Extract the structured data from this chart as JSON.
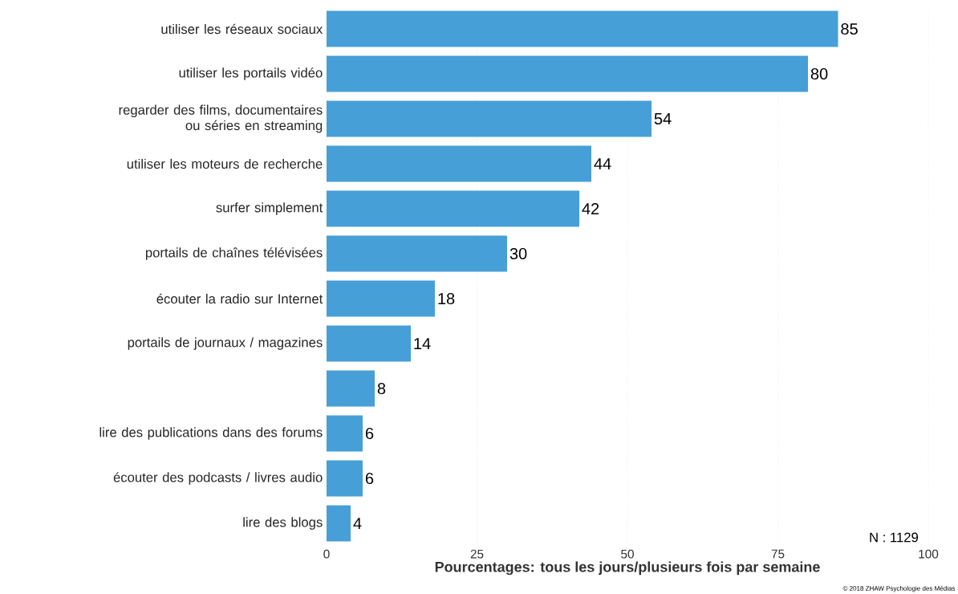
{
  "chart_data": {
    "type": "bar",
    "orientation": "horizontal",
    "categories": [
      "utiliser les réseaux sociaux",
      "utiliser les portails vidéo",
      "regarder des films, documentaires ou séries en streaming",
      "utiliser les moteurs de recherche",
      "surfer simplement",
      "portails de chaînes télévisées",
      "écouter la radio sur Internet",
      "portails de journaux / magazines",
      null,
      "lire des publications dans des forums",
      "écouter des podcasts / livres audio",
      "lire des blogs"
    ],
    "values": [
      85,
      80,
      54,
      44,
      42,
      30,
      18,
      14,
      8,
      6,
      6,
      4
    ],
    "color": "#479fd7",
    "data_labels": true,
    "xlim": [
      0,
      100
    ],
    "xticks": [
      0,
      25,
      50,
      75,
      100
    ],
    "grid": "x",
    "xlabel": "Pourcentages: tous les jours/plusieurs fois par semaine",
    "annotations": [
      "N : 1129",
      "© 2018 ZHAW Psychologie des Médias"
    ]
  }
}
